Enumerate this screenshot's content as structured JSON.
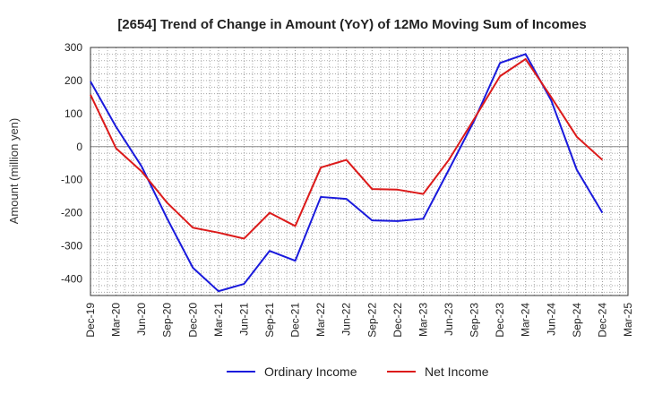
{
  "chart_data": {
    "type": "line",
    "title": "[2654]  Trend of Change in Amount (YoY) of 12Mo Moving Sum of Incomes",
    "xlabel": "",
    "ylabel": "Amount (million yen)",
    "ylim": [
      -450,
      300
    ],
    "yticks": [
      300,
      200,
      100,
      0,
      -100,
      -200,
      -300,
      -400
    ],
    "ytick_labels": [
      "300",
      "200",
      "100",
      "0",
      "-100",
      "-200",
      "-300",
      "-400"
    ],
    "grid": true,
    "legend_position": "bottom",
    "x": [
      "Dec-19",
      "Mar-20",
      "Jun-20",
      "Sep-20",
      "Dec-20",
      "Mar-21",
      "Jun-21",
      "Sep-21",
      "Dec-21",
      "Mar-22",
      "Jun-22",
      "Sep-22",
      "Dec-22",
      "Mar-23",
      "Jun-23",
      "Sep-23",
      "Dec-23",
      "Mar-24",
      "Jun-24",
      "Sep-24",
      "Dec-24",
      "Mar-25"
    ],
    "series": [
      {
        "name": "Ordinary Income",
        "color": "#1a1adc",
        "values": [
          197,
          60,
          -60,
          -218,
          -366,
          -437,
          -415,
          -315,
          -345,
          -152,
          -158,
          -223,
          -225,
          -218,
          -70,
          80,
          253,
          280,
          140,
          -70,
          -200,
          null
        ]
      },
      {
        "name": "Net Income",
        "color": "#dc1a1a",
        "values": [
          157,
          -5,
          -75,
          -170,
          -245,
          -260,
          -278,
          -200,
          -240,
          -63,
          -40,
          -128,
          -130,
          -143,
          -40,
          85,
          213,
          265,
          150,
          30,
          -40,
          null
        ]
      }
    ]
  }
}
